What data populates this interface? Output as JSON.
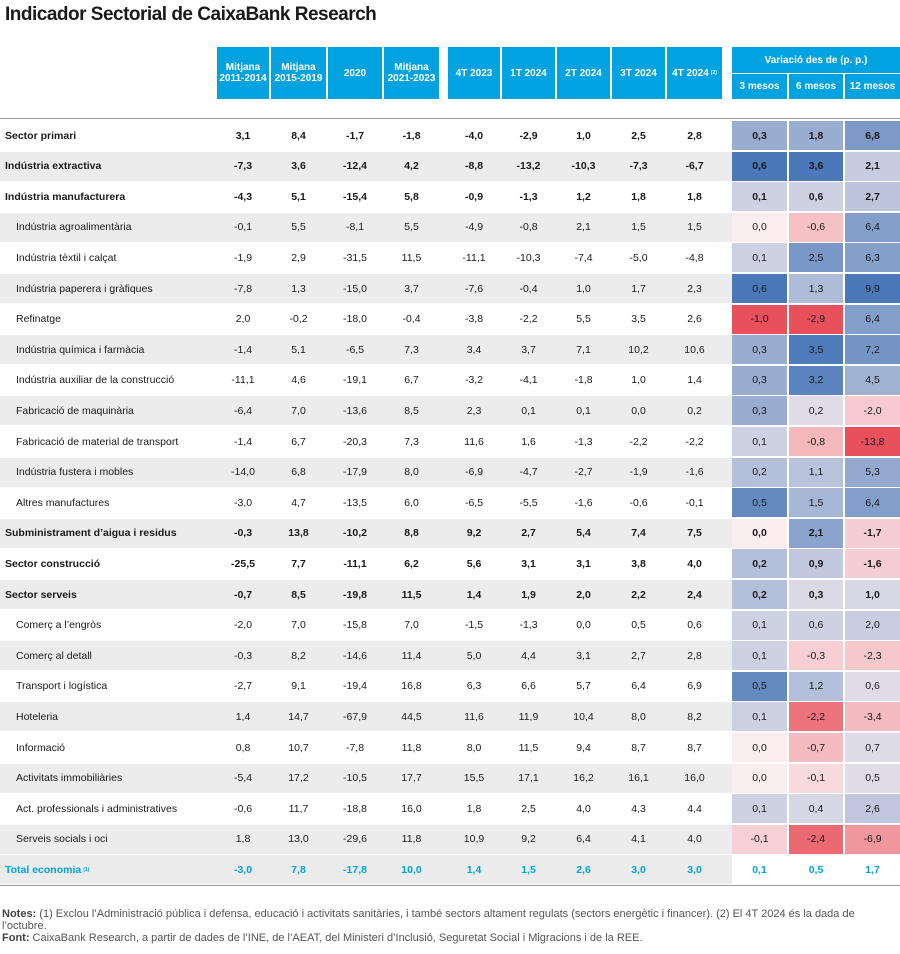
{
  "title": "Indicador Sectorial de CaixaBank Research",
  "columns": {
    "m1": "Mitjana 2011-2014",
    "m2": "Mitjana 2015-2019",
    "y2020": "2020",
    "m3": "Mitjana 2021-2023",
    "q1": "4T 2023",
    "q2": "1T 2024",
    "q3": "2T 2024",
    "q4": "3T 2024",
    "q5": "4T 2024",
    "q5_note": "(2)",
    "variation_title": "Variació des de (p. p.)",
    "v1": "3 mesos",
    "v2": "6 mesos",
    "v3": "12 mesos"
  },
  "rows": [
    {
      "label": "Sector primari",
      "bold": true,
      "indent": false,
      "shade": false,
      "values": [
        "3,1",
        "8,4",
        "-1,7",
        "-1,8",
        "-4,0",
        "-2,9",
        "1,0",
        "2,5",
        "2,8"
      ],
      "variations": [
        0.3,
        1.8,
        6.8
      ]
    },
    {
      "label": "Indústria extractiva",
      "bold": true,
      "indent": false,
      "shade": true,
      "values": [
        "-7,3",
        "3,6",
        "-12,4",
        "4,2",
        "-8,8",
        "-13,2",
        "-10,3",
        "-7,3",
        "-6,7"
      ],
      "variations": [
        0.6,
        3.6,
        2.1
      ]
    },
    {
      "label": "Indústria manufacturera",
      "bold": true,
      "indent": false,
      "shade": false,
      "values": [
        "-4,3",
        "5,1",
        "-15,4",
        "5,8",
        "-0,9",
        "-1,3",
        "1,2",
        "1,8",
        "1,8"
      ],
      "variations": [
        0.1,
        0.6,
        2.7
      ]
    },
    {
      "label": "Indústria agroalimentària",
      "bold": false,
      "indent": true,
      "shade": true,
      "values": [
        "-0,1",
        "5,5",
        "-8,1",
        "5,5",
        "-4,9",
        "-0,8",
        "2,1",
        "1,5",
        "1,5"
      ],
      "variations": [
        0.0,
        -0.6,
        6.4
      ]
    },
    {
      "label": "Indústria tèxtil i calçat",
      "bold": false,
      "indent": true,
      "shade": false,
      "values": [
        "-1,9",
        "2,9",
        "-31,5",
        "11,5",
        "-11,1",
        "-10,3",
        "-7,4",
        "-5,0",
        "-4,8"
      ],
      "variations": [
        0.1,
        2.5,
        6.3
      ]
    },
    {
      "label": "Indústria paperera i gràfiques",
      "bold": false,
      "indent": true,
      "shade": true,
      "values": [
        "-7,8",
        "1,3",
        "-15,0",
        "3,7",
        "-7,6",
        "-0,4",
        "1,0",
        "1,7",
        "2,3"
      ],
      "variations": [
        0.6,
        1.3,
        9.9
      ]
    },
    {
      "label": "Refinatge",
      "bold": false,
      "indent": true,
      "shade": false,
      "values": [
        "2,0",
        "-0,2",
        "-18,0",
        "-0,4",
        "-3,8",
        "-2,2",
        "5,5",
        "3,5",
        "2,6"
      ],
      "variations": [
        -1.0,
        -2.9,
        6.4
      ]
    },
    {
      "label": "Indústria química i farmàcia",
      "bold": false,
      "indent": true,
      "shade": true,
      "values": [
        "-1,4",
        "5,1",
        "-6,5",
        "7,3",
        "3,4",
        "3,7",
        "7,1",
        "10,2",
        "10,6"
      ],
      "variations": [
        0.3,
        3.5,
        7.2
      ]
    },
    {
      "label": "Indústria auxiliar de la construcció",
      "bold": false,
      "indent": true,
      "shade": false,
      "values": [
        "-11,1",
        "4,6",
        "-19,1",
        "6,7",
        "-3,2",
        "-4,1",
        "-1,8",
        "1,0",
        "1,4"
      ],
      "variations": [
        0.3,
        3.2,
        4.5
      ]
    },
    {
      "label": "Fabricació de maquinària",
      "bold": false,
      "indent": true,
      "shade": true,
      "values": [
        "-6,4",
        "7,0",
        "-13,6",
        "8,5",
        "2,3",
        "0,1",
        "0,1",
        "0,0",
        "0,2"
      ],
      "variations": [
        0.3,
        0.2,
        -2.0
      ]
    },
    {
      "label": "Fabricació de material de transport",
      "bold": false,
      "indent": true,
      "shade": false,
      "values": [
        "-1,4",
        "6,7",
        "-20,3",
        "7,3",
        "11,6",
        "1,6",
        "-1,3",
        "-2,2",
        "-2,2"
      ],
      "variations": [
        0.1,
        -0.8,
        -13.8
      ]
    },
    {
      "label": "Indústria fustera i mobles",
      "bold": false,
      "indent": true,
      "shade": true,
      "values": [
        "-14,0",
        "6,8",
        "-17,9",
        "8,0",
        "-6,9",
        "-4,7",
        "-2,7",
        "-1,9",
        "-1,6"
      ],
      "variations": [
        0.2,
        1.1,
        5.3
      ]
    },
    {
      "label": "Altres manufactures",
      "bold": false,
      "indent": true,
      "shade": false,
      "values": [
        "-3,0",
        "4,7",
        "-13,5",
        "6,0",
        "-6,5",
        "-5,5",
        "-1,6",
        "-0,6",
        "-0,1"
      ],
      "variations": [
        0.5,
        1.5,
        6.4
      ]
    },
    {
      "label": "Subministrament d’aigua i residus",
      "bold": true,
      "indent": false,
      "shade": true,
      "values": [
        "-0,3",
        "13,8",
        "-10,2",
        "8,8",
        "9,2",
        "2,7",
        "5,4",
        "7,4",
        "7,5"
      ],
      "variations": [
        0.0,
        2.1,
        -1.7
      ]
    },
    {
      "label": "Sector construcció",
      "bold": true,
      "indent": false,
      "shade": false,
      "values": [
        "-25,5",
        "7,7",
        "-11,1",
        "6,2",
        "5,6",
        "3,1",
        "3,1",
        "3,8",
        "4,0"
      ],
      "variations": [
        0.2,
        0.9,
        -1.6
      ]
    },
    {
      "label": "Sector serveis",
      "bold": true,
      "indent": false,
      "shade": true,
      "values": [
        "-0,7",
        "8,5",
        "-19,8",
        "11,5",
        "1,4",
        "1,9",
        "2,0",
        "2,2",
        "2,4"
      ],
      "variations": [
        0.2,
        0.3,
        1.0
      ]
    },
    {
      "label": "Comerç a l’engròs",
      "bold": false,
      "indent": true,
      "shade": false,
      "values": [
        "-2,0",
        "7,0",
        "-15,8",
        "7,0",
        "-1,5",
        "-1,3",
        "0,0",
        "0,5",
        "0,6"
      ],
      "variations": [
        0.1,
        0.6,
        2.0
      ]
    },
    {
      "label": "Comerç al detall",
      "bold": false,
      "indent": true,
      "shade": true,
      "values": [
        "-0,3",
        "8,2",
        "-14,6",
        "11,4",
        "5,0",
        "4,4",
        "3,1",
        "2,7",
        "2,8"
      ],
      "variations": [
        0.1,
        -0.3,
        -2.3
      ]
    },
    {
      "label": "Transport i logística",
      "bold": false,
      "indent": true,
      "shade": false,
      "values": [
        "-2,7",
        "9,1",
        "-19,4",
        "16,8",
        "6,3",
        "6,6",
        "5,7",
        "6,4",
        "6,9"
      ],
      "variations": [
        0.5,
        1.2,
        0.6
      ]
    },
    {
      "label": "Hoteleria",
      "bold": false,
      "indent": true,
      "shade": true,
      "values": [
        "1,4",
        "14,7",
        "-67,9",
        "44,5",
        "11,6",
        "11,9",
        "10,4",
        "8,0",
        "8,2"
      ],
      "variations": [
        0.1,
        -2.2,
        -3.4
      ]
    },
    {
      "label": "Informació",
      "bold": false,
      "indent": true,
      "shade": false,
      "values": [
        "0,8",
        "10,7",
        "-7,8",
        "11,8",
        "8,0",
        "11,5",
        "9,4",
        "8,7",
        "8,7"
      ],
      "variations": [
        0.0,
        -0.7,
        0.7
      ]
    },
    {
      "label": "Activitats immobiliàries",
      "bold": false,
      "indent": true,
      "shade": true,
      "values": [
        "-5,4",
        "17,2",
        "-10,5",
        "17,7",
        "15,5",
        "17,1",
        "16,2",
        "16,1",
        "16,0"
      ],
      "variations": [
        0.0,
        -0.1,
        0.5
      ]
    },
    {
      "label": "Act. professionals i administratives",
      "bold": false,
      "indent": true,
      "shade": false,
      "values": [
        "-0,6",
        "11,7",
        "-18,8",
        "16,0",
        "1,8",
        "2,5",
        "4,0",
        "4,3",
        "4,4"
      ],
      "variations": [
        0.1,
        0.4,
        2.6
      ]
    },
    {
      "label": "Serveis socials i oci",
      "bold": false,
      "indent": true,
      "shade": true,
      "values": [
        "1,8",
        "13,0",
        "-29,6",
        "11,8",
        "10,9",
        "9,2",
        "6,4",
        "4,1",
        "4,0"
      ],
      "variations": [
        -0.1,
        -2.4,
        -6.9
      ]
    }
  ],
  "total": {
    "label": "Total economia",
    "note": "(1)",
    "values": [
      "-3,0",
      "7,8",
      "-17,8",
      "10,0",
      "1,4",
      "1,5",
      "2,6",
      "3,0",
      "3,0"
    ],
    "variations": [
      0.1,
      0.5,
      1.7
    ]
  },
  "notes": {
    "notes_label": "Notes:",
    "notes_text": " (1) Exclou l’Administració pública i defensa, educació i activitats sanitàries, i també sectors altament regulats (sectors energètic i financer). (2) El 4T 2024 és la dada de l’octubre.",
    "source_label": "Font:",
    "source_text": " CaixaBank Research, a partir de dades de l’INE, de l’AEAT, del Ministeri d’Inclusió, Seguretat Social i Migracions i de la REE."
  },
  "colors": {
    "header_blue": "#00a3e0",
    "positive": "#4a78b8",
    "negative": "#e8505b",
    "shade": "#ececec"
  }
}
